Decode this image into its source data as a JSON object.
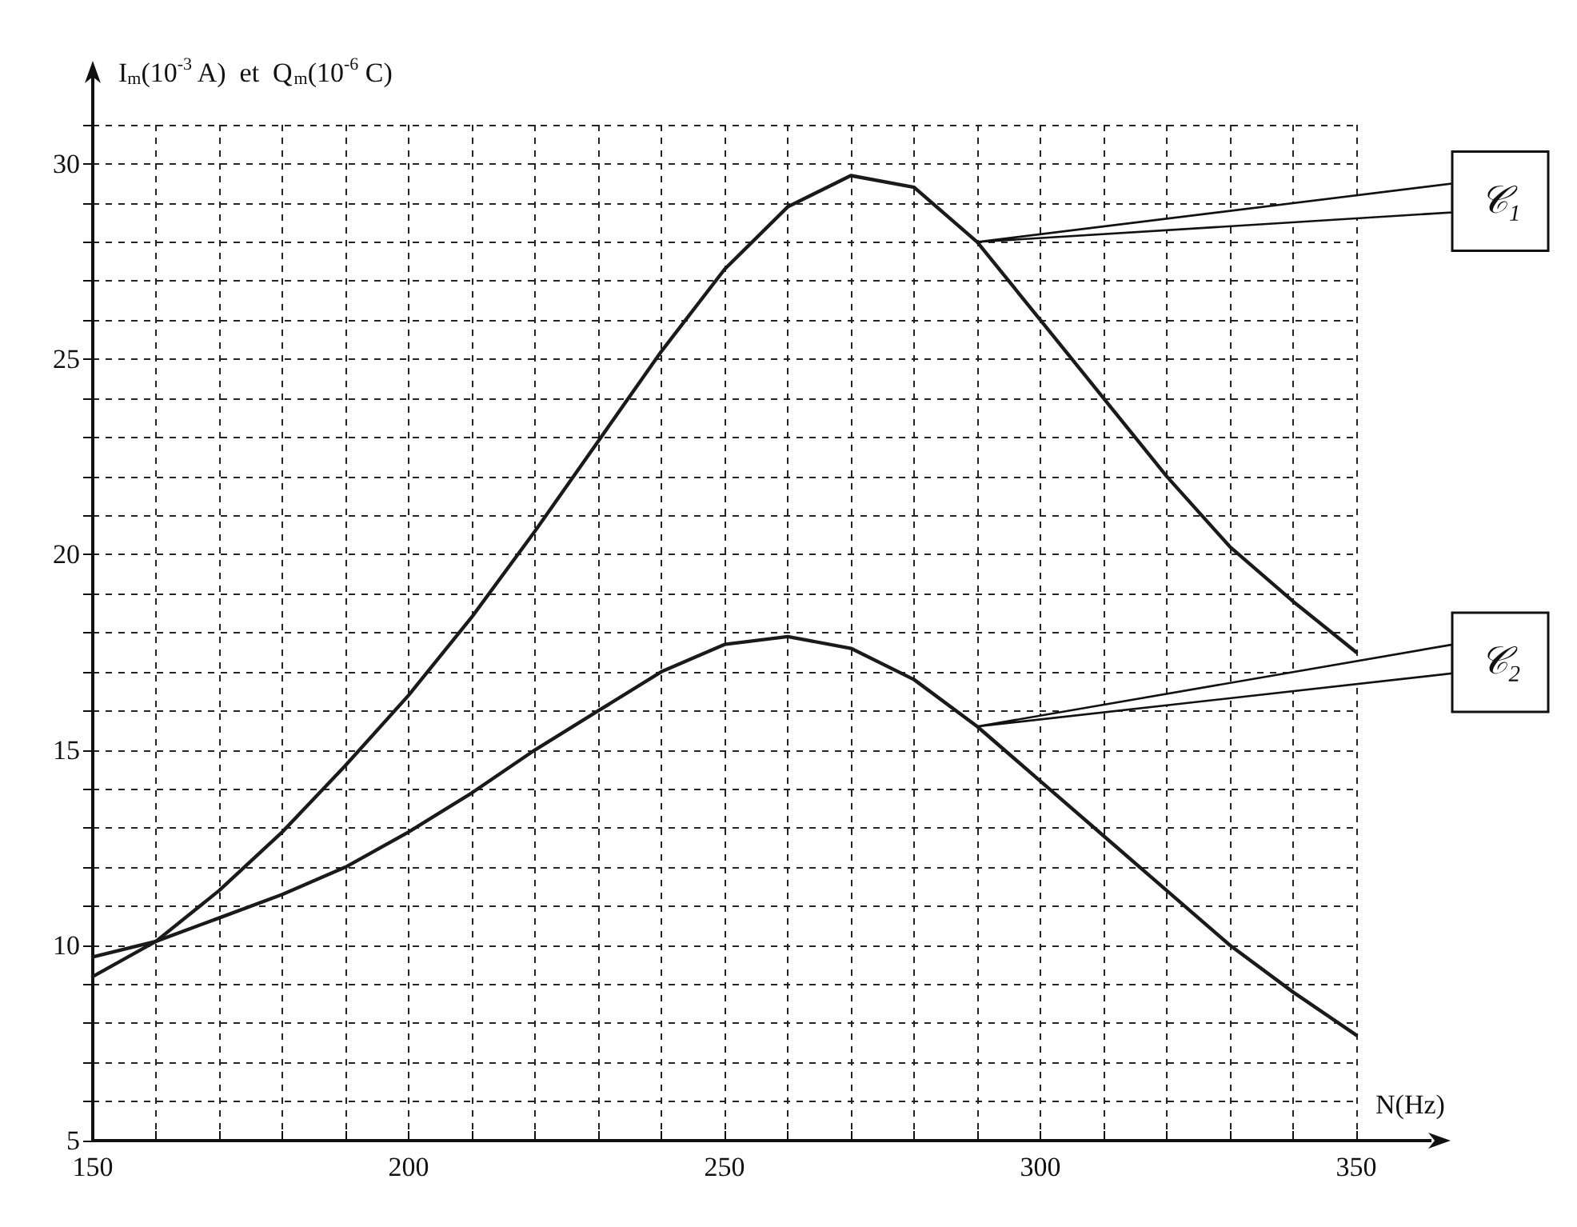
{
  "chart_data": {
    "type": "line",
    "xlabel": "N(Hz)",
    "ylabel": "I$_{m}$(10$^{-3}$ A)  et  Q$_{m}$(10$^{-6}$ C)",
    "x": [
      150,
      160,
      170,
      180,
      190,
      200,
      210,
      220,
      230,
      240,
      250,
      260,
      270,
      280,
      290,
      300,
      310,
      320,
      330,
      340,
      350
    ],
    "series": [
      {
        "name": "𝒞₁",
        "color": "#1a1a1a",
        "values": [
          9.2,
          10.1,
          11.4,
          12.9,
          14.6,
          16.4,
          18.4,
          20.6,
          22.9,
          25.2,
          27.3,
          28.9,
          29.7,
          29.4,
          28.0,
          26.0,
          24.0,
          22.0,
          20.2,
          18.8,
          17.5
        ]
      },
      {
        "name": "𝒞₂",
        "color": "#1a1a1a",
        "values": [
          9.7,
          10.1,
          10.7,
          11.3,
          12.0,
          12.9,
          13.9,
          15.0,
          16.0,
          17.0,
          17.7,
          17.9,
          17.6,
          16.8,
          15.6,
          14.2,
          12.8,
          11.4,
          10.0,
          8.8,
          7.7
        ]
      }
    ],
    "xlim": [
      150,
      350
    ],
    "ylim": [
      5,
      31
    ],
    "xticks": [
      150,
      {
        "value": 160,
        "label": null
      },
      {
        "value": 170,
        "label": null
      },
      {
        "value": 180,
        "label": null
      },
      {
        "value": 190,
        "label": null
      },
      200,
      {
        "value": 210,
        "label": null
      },
      {
        "value": 220,
        "label": null
      },
      {
        "value": 230,
        "label": null
      },
      {
        "value": 240,
        "label": null
      },
      250,
      {
        "value": 260,
        "label": null
      },
      {
        "value": 270,
        "label": null
      },
      {
        "value": 280,
        "label": null
      },
      {
        "value": 290,
        "label": null
      },
      300,
      {
        "value": 310,
        "label": null
      },
      {
        "value": 320,
        "label": null
      },
      {
        "value": 330,
        "label": null
      },
      {
        "value": 340,
        "label": null
      },
      350
    ],
    "yticks": [
      5,
      {
        "value": 6,
        "label": null
      },
      {
        "value": 7,
        "label": null
      },
      {
        "value": 8,
        "label": null
      },
      {
        "value": 9,
        "label": null
      },
      10,
      {
        "value": 11,
        "label": null
      },
      {
        "value": 12,
        "label": null
      },
      {
        "value": 13,
        "label": null
      },
      {
        "value": 14,
        "label": null
      },
      15,
      {
        "value": 16,
        "label": null
      },
      {
        "value": 17,
        "label": null
      },
      {
        "value": 18,
        "label": null
      },
      {
        "value": 19,
        "label": null
      },
      20,
      {
        "value": 21,
        "label": null
      },
      {
        "value": 22,
        "label": null
      },
      {
        "value": 23,
        "label": null
      },
      {
        "value": 24,
        "label": null
      },
      25,
      {
        "value": 26,
        "label": null
      },
      {
        "value": 27,
        "label": null
      },
      {
        "value": 28,
        "label": null
      },
      {
        "value": 29,
        "label": null
      },
      30,
      {
        "value": 31,
        "label": null
      }
    ],
    "grid": true,
    "legend": false,
    "marker": "none",
    "line_style": "solid"
  }
}
